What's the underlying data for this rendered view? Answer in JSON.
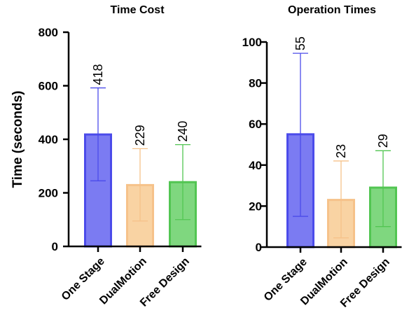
{
  "chart_data": [
    {
      "type": "bar",
      "title": "Time Cost",
      "xlabel": "",
      "ylabel": "Time (seconds)",
      "ylim": [
        0,
        800
      ],
      "yticks": [
        0,
        200,
        400,
        600,
        800
      ],
      "categories": [
        "One Stage",
        "DualMotion",
        "Free Design"
      ],
      "values": [
        418,
        229,
        240
      ],
      "value_labels": [
        "418",
        "229",
        "240"
      ],
      "error_low": [
        245,
        95,
        100
      ],
      "error_high": [
        592,
        365,
        380
      ],
      "colors": [
        "#7b7bf2",
        "#f9d3a3",
        "#7fd77f"
      ],
      "edge_colors": [
        "#4b4bea",
        "#f6c28a",
        "#52c552"
      ]
    },
    {
      "type": "bar",
      "title": "Operation Times",
      "xlabel": "",
      "ylabel": "",
      "ylim": [
        0,
        100
      ],
      "yticks": [
        0,
        20,
        40,
        60,
        80,
        100
      ],
      "categories": [
        "One Stage",
        "DualMotion",
        "Free Design"
      ],
      "values": [
        55,
        23,
        29
      ],
      "value_labels": [
        "55",
        "23",
        "29"
      ],
      "error_low": [
        15,
        4.5,
        10
      ],
      "error_high": [
        94.5,
        42,
        47
      ],
      "colors": [
        "#7b7bf2",
        "#f9d3a3",
        "#7fd77f"
      ],
      "edge_colors": [
        "#4b4bea",
        "#f6c28a",
        "#52c552"
      ]
    }
  ]
}
